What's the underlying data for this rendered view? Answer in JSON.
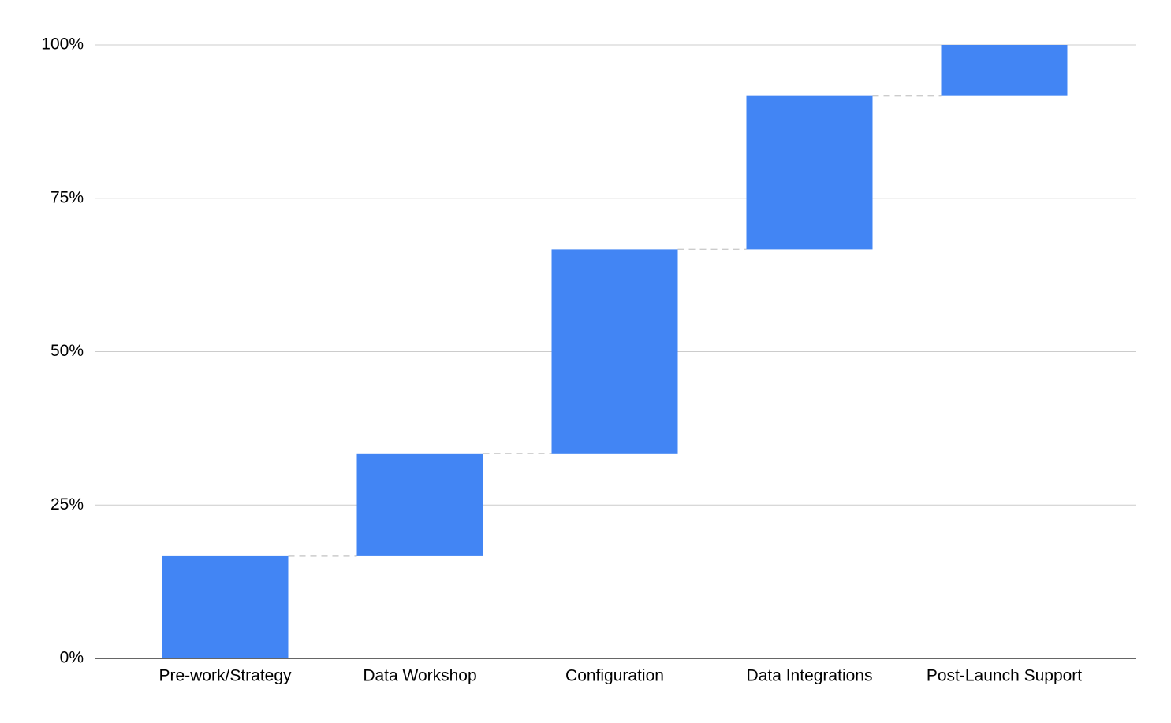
{
  "chart_data": {
    "type": "waterfall",
    "categories": [
      "Pre-work/Strategy",
      "Data Workshop",
      "Configuration",
      "Data Integrations",
      "Post-Launch Support"
    ],
    "values": [
      16.7,
      16.7,
      33.3,
      25,
      8.3
    ],
    "color": "#4285f4",
    "ylim": [
      0,
      100
    ],
    "yticks": [
      {
        "value": 0,
        "label": "0%"
      },
      {
        "value": 25,
        "label": "25%"
      },
      {
        "value": 50,
        "label": "50%"
      },
      {
        "value": 75,
        "label": "75%"
      },
      {
        "value": 100,
        "label": "100%"
      }
    ],
    "grid": true
  }
}
